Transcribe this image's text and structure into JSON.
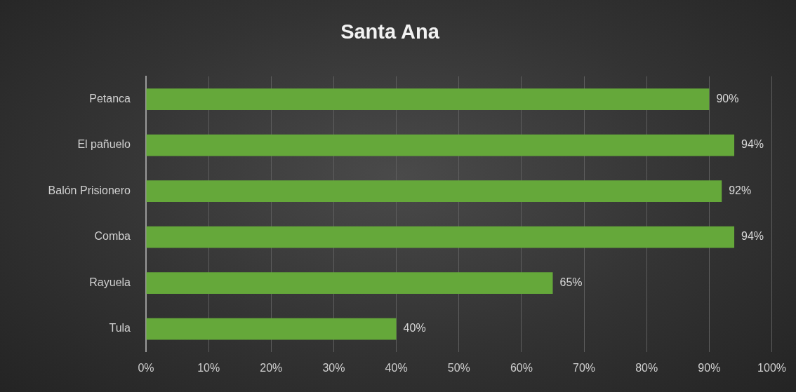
{
  "chart_data": {
    "type": "bar",
    "orientation": "horizontal",
    "title": "Santa Ana",
    "categories": [
      "Petanca",
      "El pañuelo",
      "Balón Prisionero",
      "Comba",
      "Rayuela",
      "Tula"
    ],
    "values": [
      90,
      94,
      92,
      94,
      65,
      40
    ],
    "value_labels": [
      "90%",
      "94%",
      "92%",
      "94%",
      "65%",
      "40%"
    ],
    "color": "#65a83a",
    "xlim": [
      0,
      100
    ],
    "xticks": [
      {
        "value": 0,
        "label": "0%"
      },
      {
        "value": 10,
        "label": "10%"
      },
      {
        "value": 20,
        "label": "20%"
      },
      {
        "value": 30,
        "label": "30%"
      },
      {
        "value": 40,
        "label": "40%"
      },
      {
        "value": 50,
        "label": "50%"
      },
      {
        "value": 60,
        "label": "60%"
      },
      {
        "value": 70,
        "label": "70%"
      },
      {
        "value": 80,
        "label": "80%"
      },
      {
        "value": 90,
        "label": "90%"
      },
      {
        "value": 100,
        "label": "100%"
      }
    ],
    "grid": "x",
    "legend": false
  }
}
